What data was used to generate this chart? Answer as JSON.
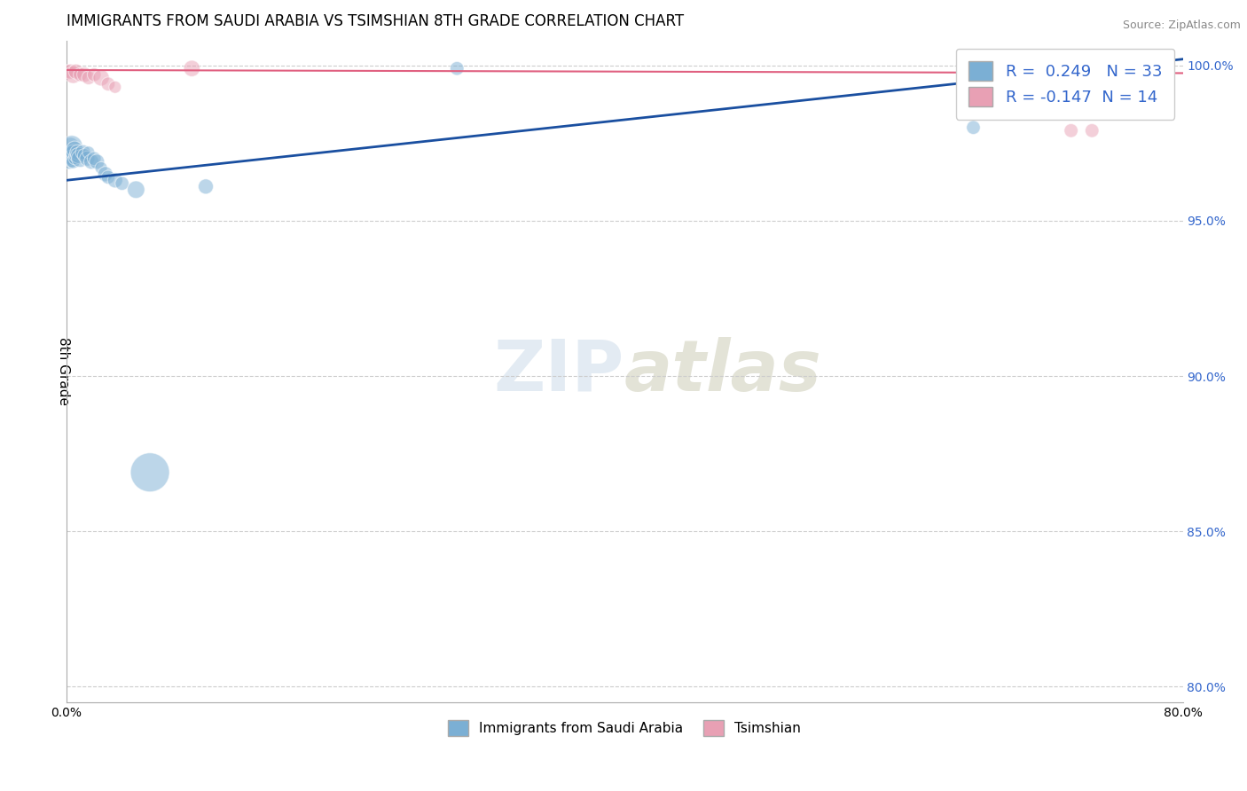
{
  "title": "IMMIGRANTS FROM SAUDI ARABIA VS TSIMSHIAN 8TH GRADE CORRELATION CHART",
  "source": "Source: ZipAtlas.com",
  "xlabel": "",
  "ylabel": "8th Grade",
  "xlim": [
    0.0,
    0.8
  ],
  "ylim": [
    0.795,
    1.008
  ],
  "xticks": [
    0.0,
    0.1,
    0.2,
    0.3,
    0.4,
    0.5,
    0.6,
    0.7,
    0.8
  ],
  "xticklabels": [
    "0.0%",
    "",
    "",
    "",
    "",
    "",
    "",
    "",
    "80.0%"
  ],
  "yticks": [
    0.8,
    0.85,
    0.9,
    0.95,
    1.0
  ],
  "yticklabels": [
    "80.0%",
    "85.0%",
    "90.0%",
    "95.0%",
    "100.0%"
  ],
  "R_blue": 0.249,
  "N_blue": 33,
  "R_pink": -0.147,
  "N_pink": 14,
  "blue_color": "#7bafd4",
  "pink_color": "#e8a0b4",
  "blue_line_color": "#1a4fa0",
  "pink_line_color": "#e06080",
  "watermark": "ZIPatlas",
  "blue_scatter_x": [
    0.001,
    0.002,
    0.002,
    0.003,
    0.003,
    0.004,
    0.004,
    0.005,
    0.005,
    0.006,
    0.006,
    0.007,
    0.008,
    0.009,
    0.01,
    0.012,
    0.013,
    0.015,
    0.016,
    0.018,
    0.02,
    0.022,
    0.025,
    0.028,
    0.03,
    0.035,
    0.04,
    0.05,
    0.06,
    0.1,
    0.28,
    0.65,
    0.73
  ],
  "blue_scatter_y": [
    0.971,
    0.972,
    0.969,
    0.974,
    0.971,
    0.974,
    0.97,
    0.972,
    0.969,
    0.973,
    0.97,
    0.971,
    0.972,
    0.971,
    0.97,
    0.972,
    0.971,
    0.97,
    0.972,
    0.969,
    0.97,
    0.969,
    0.967,
    0.965,
    0.964,
    0.963,
    0.962,
    0.96,
    0.869,
    0.961,
    0.999,
    0.98,
    1.0
  ],
  "blue_scatter_size": [
    40,
    50,
    60,
    80,
    100,
    120,
    80,
    60,
    50,
    70,
    40,
    50,
    60,
    70,
    80,
    60,
    50,
    60,
    40,
    60,
    50,
    60,
    40,
    60,
    50,
    60,
    50,
    80,
    400,
    60,
    50,
    50,
    50
  ],
  "pink_scatter_x": [
    0.001,
    0.003,
    0.005,
    0.007,
    0.01,
    0.013,
    0.016,
    0.02,
    0.025,
    0.03,
    0.035,
    0.09,
    0.72,
    0.735
  ],
  "pink_scatter_y": [
    0.998,
    0.998,
    0.997,
    0.998,
    0.997,
    0.997,
    0.996,
    0.997,
    0.996,
    0.994,
    0.993,
    0.999,
    0.979,
    0.979
  ],
  "pink_scatter_size": [
    50,
    60,
    80,
    60,
    50,
    60,
    50,
    50,
    70,
    50,
    40,
    70,
    50,
    50
  ],
  "legend_blue_label": "R =  0.249   N = 33",
  "legend_pink_label": "R = -0.147  N = 14",
  "bottom_legend_blue": "Immigrants from Saudi Arabia",
  "bottom_legend_pink": "Tsimshian"
}
